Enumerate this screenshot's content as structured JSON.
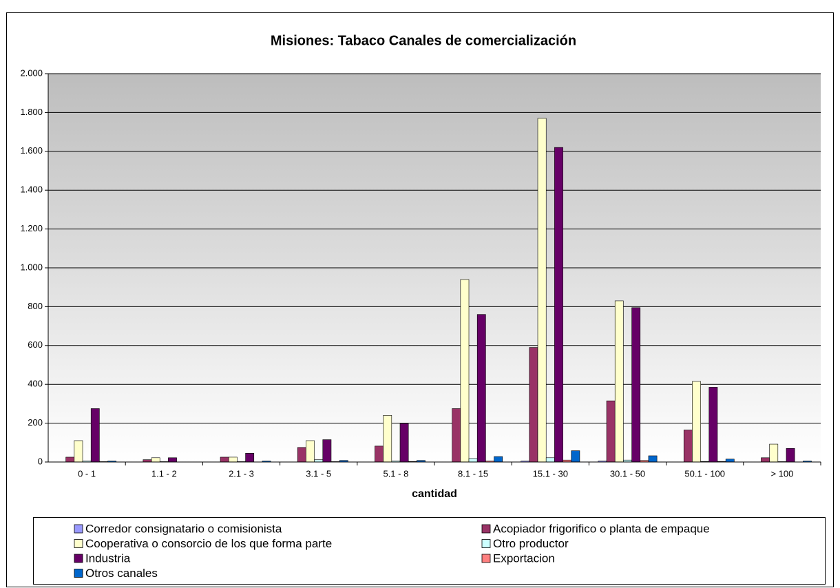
{
  "chart_data": {
    "type": "bar",
    "title": "Misiones: Tabaco Canales de comercialización",
    "x_label": "cantidad",
    "categories": [
      "0 - 1",
      "1.1 - 2",
      "2.1 - 3",
      "3.1 - 5",
      "5.1 - 8",
      "8.1 - 15",
      "15.1 - 30",
      "30.1 - 50",
      "50.1 - 100",
      "> 100"
    ],
    "series": [
      {
        "name": "Corredor consignatario o comisionista",
        "color": "#9999ff",
        "values": [
          0,
          0,
          0,
          0,
          0,
          0,
          5,
          5,
          0,
          0
        ]
      },
      {
        "name": "Acopiador frigorifico o planta de empaque",
        "color": "#993366",
        "values": [
          25,
          12,
          25,
          75,
          82,
          275,
          590,
          315,
          165,
          22
        ]
      },
      {
        "name": "Cooperativa o consorcio de los que forma parte",
        "color": "#ffffcc",
        "values": [
          110,
          22,
          25,
          110,
          240,
          940,
          1770,
          830,
          415,
          92
        ]
      },
      {
        "name": "Otro productor",
        "color": "#ccffff",
        "values": [
          5,
          2,
          2,
          12,
          5,
          18,
          22,
          10,
          3,
          2
        ]
      },
      {
        "name": "Industria",
        "color": "#660066",
        "values": [
          275,
          22,
          45,
          115,
          198,
          760,
          1620,
          795,
          385,
          70
        ]
      },
      {
        "name": "Exportacion",
        "color": "#ff8080",
        "values": [
          2,
          0,
          0,
          2,
          3,
          5,
          10,
          8,
          3,
          0
        ]
      },
      {
        "name": "Otros canales",
        "color": "#0066cc",
        "values": [
          5,
          0,
          5,
          8,
          8,
          28,
          58,
          32,
          15,
          5
        ]
      }
    ],
    "ylim": [
      0,
      2000
    ],
    "yticks": [
      0,
      200,
      400,
      600,
      800,
      {
        "value": 1000,
        "label": "1.000"
      },
      {
        "value": 1200,
        "label": "1.200"
      },
      {
        "value": 1400,
        "label": "1.400"
      },
      {
        "value": 1600,
        "label": "1.600"
      },
      {
        "value": 1800,
        "label": "1.800"
      },
      {
        "value": 2000,
        "label": "2.000"
      }
    ],
    "grid": true,
    "legend": "bottom"
  }
}
